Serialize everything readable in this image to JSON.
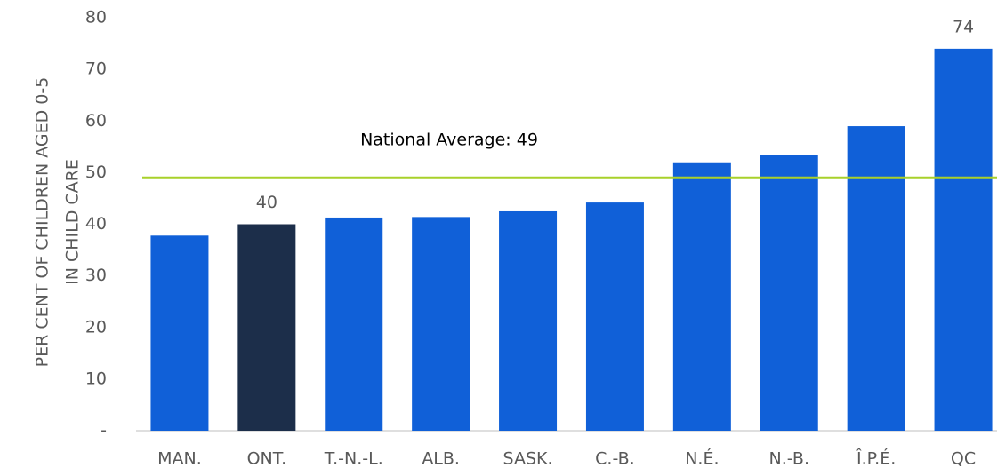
{
  "chart_data": {
    "type": "bar",
    "ylabel": [
      "PER CENT OF CHILDREN AGED 0-5",
      "IN CHILD CARE"
    ],
    "categories": [
      "MAN.",
      "ONT.",
      "T.-N.-L.",
      "ALB.",
      "SASK.",
      "C.-B.",
      "N.É.",
      "N.-B.",
      "Î.P.É.",
      "QC"
    ],
    "values": [
      37.8,
      40,
      41.3,
      41.4,
      42.5,
      44.2,
      52,
      53.5,
      59,
      74
    ],
    "value_labels": [
      null,
      "40",
      null,
      null,
      null,
      null,
      null,
      null,
      null,
      "74"
    ],
    "colors": [
      "#1060d8",
      "#1c2e4a",
      "#1060d8",
      "#1060d8",
      "#1060d8",
      "#1060d8",
      "#1060d8",
      "#1060d8",
      "#1060d8",
      "#1060d8"
    ],
    "ylim": [
      0,
      80
    ],
    "yticks": [
      {
        "value": 0,
        "label": "-"
      },
      10,
      20,
      30,
      40,
      50,
      60,
      70,
      80
    ],
    "reference_line": {
      "value": 49,
      "label": "National Average: 49",
      "color": "#a8d12a"
    }
  }
}
